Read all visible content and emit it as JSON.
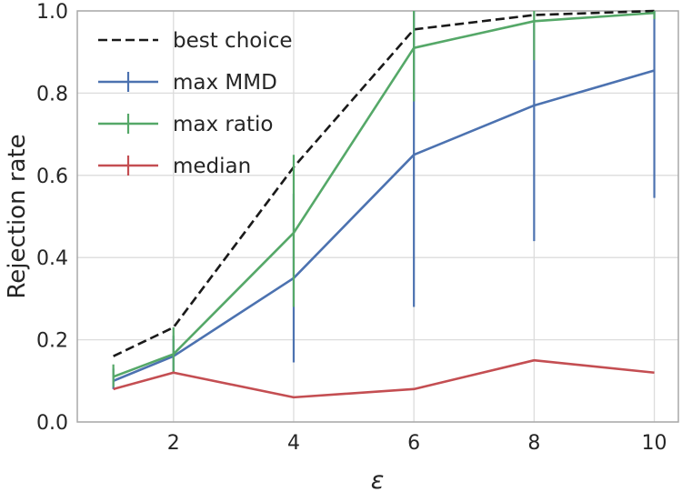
{
  "chart_data": {
    "type": "line",
    "title": "",
    "xlabel": "ε",
    "ylabel": "Rejection rate",
    "x": [
      1,
      2,
      4,
      6,
      8,
      10
    ],
    "xlim": [
      0.4,
      10.4
    ],
    "ylim": [
      0.0,
      1.0
    ],
    "x_ticks": [
      2,
      4,
      6,
      8,
      10
    ],
    "y_ticks": [
      0.0,
      0.2,
      0.4,
      0.6,
      0.8,
      1.0
    ],
    "grid": true,
    "legend_position": "upper-left",
    "series": [
      {
        "name": "best choice",
        "color": "#1a1a1a",
        "line_style": "dashed",
        "legend_errorbar_handle": false,
        "values": [
          0.16,
          0.23,
          0.62,
          0.955,
          0.99,
          1.0
        ]
      },
      {
        "name": "max MMD",
        "color": "#4c72b0",
        "line_style": "solid",
        "legend_errorbar_handle": true,
        "values": [
          0.1,
          0.16,
          0.35,
          0.65,
          0.77,
          0.855
        ],
        "err_low": [
          0.08,
          0.12,
          0.145,
          0.28,
          0.44,
          0.545
        ],
        "err_high": [
          0.13,
          0.21,
          0.555,
          1.0,
          0.97,
          1.0
        ]
      },
      {
        "name": "max ratio",
        "color": "#55a868",
        "line_style": "solid",
        "legend_errorbar_handle": true,
        "values": [
          0.11,
          0.165,
          0.46,
          0.91,
          0.975,
          0.995
        ],
        "err_low": [
          0.085,
          0.12,
          0.28,
          0.78,
          0.88,
          0.98
        ],
        "err_high": [
          0.14,
          0.23,
          0.65,
          1.0,
          1.0,
          1.0
        ]
      },
      {
        "name": "median",
        "color": "#c44e52",
        "line_style": "solid",
        "legend_errorbar_handle": true,
        "values": [
          0.08,
          0.12,
          0.06,
          0.08,
          0.15,
          0.12
        ]
      }
    ]
  },
  "colors": {
    "background": "#ffffff",
    "grid": "#dcdcdc",
    "axes_border": "#a8a8a8",
    "text": "#262626"
  }
}
